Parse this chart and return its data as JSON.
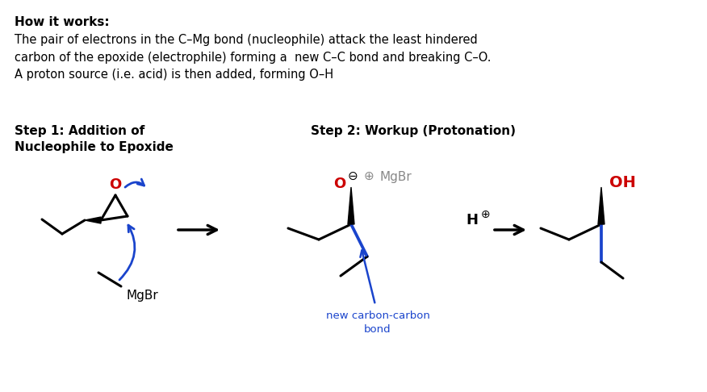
{
  "title_bold": "How it works:",
  "body_text": "The pair of electrons in the C–Mg bond (nucleophile) attack the least hindered\ncarbon of the epoxide (electrophile) forming a  new C–C bond and breaking C–O.\nA proton source (i.e. acid) is then added, forming O–H",
  "step1_label": "Step 1: Addition of\nNucleophile to Epoxide",
  "step2_label": "Step 2: Workup (Protonation)",
  "new_bond_label": "new carbon-carbon\nbond",
  "mgbr_label": "MgBr",
  "mgbr2_label": "MgBr",
  "h_label": "H",
  "o_label": "O",
  "o2_label": "O",
  "oh_label": "OH",
  "bg_color": "#ffffff",
  "text_color": "#000000",
  "red_color": "#cc0000",
  "blue_color": "#1a44cc",
  "gray_color": "#888888",
  "arrow_color": "#111111",
  "title_fontsize": 11,
  "body_fontsize": 10.5,
  "step_fontsize": 11,
  "lw": 2.2
}
